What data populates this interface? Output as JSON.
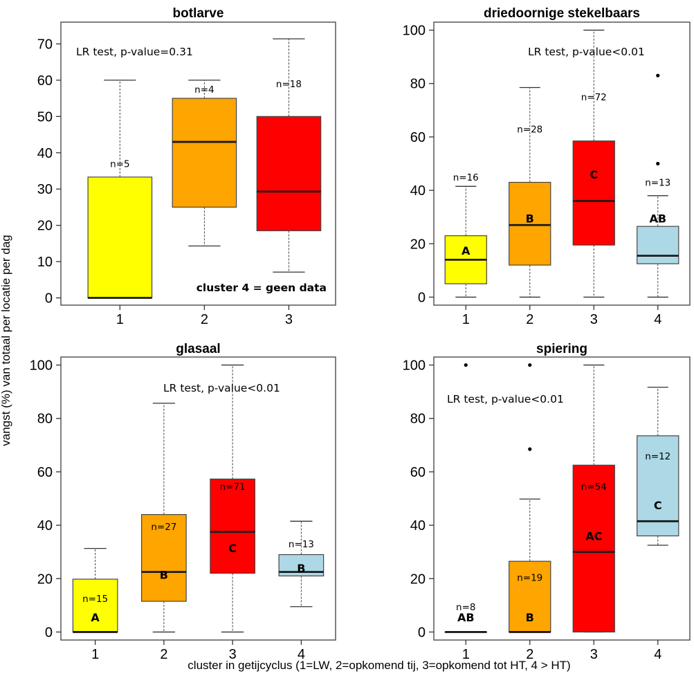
{
  "figure": {
    "ylabel": "vangst (%) van totaal per locatie per dag",
    "xlabel": "cluster in getijcyclus (1=LW, 2=opkomend tij, 3=opkomend tot HT, 4 > HT)"
  },
  "colors": {
    "cluster1": "#ffff00",
    "cluster2": "#ffa500",
    "cluster3": "#ff0000",
    "cluster4": "#add8e6"
  },
  "chart_data": [
    {
      "type": "box",
      "title": "botlarve",
      "ylim": [
        -2,
        76
      ],
      "yticks": [
        0,
        10,
        20,
        30,
        40,
        50,
        60,
        70
      ],
      "categories": [
        "1",
        "2",
        "3"
      ],
      "test_label": "LR test, p-value=0.31",
      "note": "cluster 4 = geen data",
      "boxes": [
        {
          "cluster": "1",
          "min": 0,
          "q1": 0,
          "median": 0,
          "q3": 33.3,
          "max": 60,
          "outliers": [],
          "n_label": "n=5",
          "n_y": 37,
          "letter": "",
          "letter_y": null
        },
        {
          "cluster": "2",
          "min": 14.3,
          "q1": 25,
          "median": 43,
          "q3": 55,
          "max": 60,
          "outliers": [],
          "n_label": "n=4",
          "n_y": 57.5,
          "letter": "",
          "letter_y": null
        },
        {
          "cluster": "3",
          "min": 7.1,
          "q1": 18.5,
          "median": 29.3,
          "q3": 50,
          "max": 71.4,
          "outliers": [],
          "n_label": "n=18",
          "n_y": 59,
          "letter": "",
          "letter_y": null
        }
      ]
    },
    {
      "type": "box",
      "title": "driedoornige stekelbaars",
      "ylim": [
        -3,
        103
      ],
      "yticks": [
        0,
        20,
        40,
        60,
        80,
        100
      ],
      "categories": [
        "1",
        "2",
        "3",
        "4"
      ],
      "test_label": "LR test, p-value<0.01",
      "note": "",
      "boxes": [
        {
          "cluster": "1",
          "min": 0,
          "q1": 5,
          "median": 14,
          "q3": 23,
          "max": 41.5,
          "outliers": [],
          "n_label": "n=16",
          "n_y": 45,
          "letter": "A",
          "letter_y": 17.5
        },
        {
          "cluster": "2",
          "min": 0,
          "q1": 12,
          "median": 27,
          "q3": 43,
          "max": 78.5,
          "outliers": [],
          "n_label": "n=28",
          "n_y": 63,
          "letter": "B",
          "letter_y": 29.5
        },
        {
          "cluster": "3",
          "min": 0,
          "q1": 19.5,
          "median": 36,
          "q3": 58.5,
          "max": 100,
          "outliers": [],
          "n_label": "n=72",
          "n_y": 75,
          "letter": "C",
          "letter_y": 46
        },
        {
          "cluster": "4",
          "min": 0,
          "q1": 12.5,
          "median": 15.5,
          "q3": 26.5,
          "max": 38,
          "outliers": [
            50,
            83
          ],
          "n_label": "n=13",
          "n_y": 43,
          "letter": "AB",
          "letter_y": 29.5
        }
      ]
    },
    {
      "type": "box",
      "title": "glasaal",
      "ylim": [
        -3,
        103
      ],
      "yticks": [
        0,
        20,
        40,
        60,
        80,
        100
      ],
      "categories": [
        "1",
        "2",
        "3",
        "4"
      ],
      "test_label": "LR test, p-value<0.01",
      "note": "",
      "boxes": [
        {
          "cluster": "1",
          "min": 0,
          "q1": 0,
          "median": 0,
          "q3": 19.8,
          "max": 31.3,
          "outliers": [],
          "n_label": "n=15",
          "n_y": 12.5,
          "letter": "A",
          "letter_y": 5.5
        },
        {
          "cluster": "2",
          "min": 0,
          "q1": 11.5,
          "median": 22.5,
          "q3": 44,
          "max": 85.7,
          "outliers": [],
          "n_label": "n=27",
          "n_y": 39.5,
          "letter": "B",
          "letter_y": 21.5
        },
        {
          "cluster": "3",
          "min": 0,
          "q1": 22,
          "median": 37.5,
          "q3": 57.3,
          "max": 100,
          "outliers": [],
          "n_label": "n=71",
          "n_y": 54.5,
          "letter": "C",
          "letter_y": 31.5
        },
        {
          "cluster": "4",
          "min": 9.5,
          "q1": 21,
          "median": 22.5,
          "q3": 29,
          "max": 41.5,
          "outliers": [],
          "n_label": "n=13",
          "n_y": 33,
          "letter": "B",
          "letter_y": 24
        }
      ]
    },
    {
      "type": "box",
      "title": "spiering",
      "ylim": [
        -3,
        103
      ],
      "yticks": [
        0,
        20,
        40,
        60,
        80,
        100
      ],
      "categories": [
        "1",
        "2",
        "3",
        "4"
      ],
      "test_label": "LR test, p-value<0.01",
      "note": "",
      "boxes": [
        {
          "cluster": "1",
          "min": 0,
          "q1": 0,
          "median": 0,
          "q3": 0,
          "max": 0,
          "outliers": [
            100
          ],
          "n_label": "n=8",
          "n_y": 9.5,
          "letter": "AB",
          "letter_y": 5.5
        },
        {
          "cluster": "2",
          "min": 0,
          "q1": 0,
          "median": 0,
          "q3": 26.5,
          "max": 49.8,
          "outliers": [
            68.5,
            100
          ],
          "n_label": "n=19",
          "n_y": 20.5,
          "letter": "B",
          "letter_y": 5.5
        },
        {
          "cluster": "3",
          "min": 0,
          "q1": 0,
          "median": 30,
          "q3": 62.5,
          "max": 100,
          "outliers": [],
          "n_label": "n=54",
          "n_y": 54.5,
          "letter": "AC",
          "letter_y": 36
        },
        {
          "cluster": "4",
          "min": 32.5,
          "q1": 36,
          "median": 41.5,
          "q3": 73.5,
          "max": 91.7,
          "outliers": [],
          "n_label": "n=12",
          "n_y": 66,
          "letter": "C",
          "letter_y": 47.5
        }
      ]
    }
  ]
}
